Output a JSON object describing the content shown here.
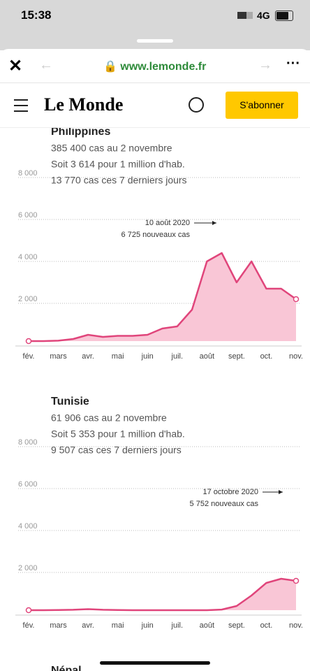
{
  "status": {
    "time": "15:38",
    "network": "4G"
  },
  "browser": {
    "url": "www.lemonde.fr"
  },
  "header": {
    "logo": "Le Monde",
    "subscribe": "S'abonner"
  },
  "chart_data": [
    {
      "type": "line",
      "title": "Philippines",
      "notes": [
        "385 400 cas au 2 novembre",
        "Soit 3 614 pour 1 million d'hab.",
        "13 770 cas ces 7 derniers jours"
      ],
      "annotation": [
        "10 août 2020",
        "6 725 nouveaux cas"
      ],
      "categories": [
        "fév.",
        null,
        "mars",
        null,
        "avr.",
        null,
        "mai",
        null,
        "juin",
        null,
        "juil.",
        null,
        "août",
        null,
        "sept.",
        null,
        "oct.",
        null,
        "nov."
      ],
      "values": [
        0,
        0,
        20,
        100,
        300,
        200,
        250,
        250,
        300,
        600,
        700,
        1500,
        3800,
        4200,
        2800,
        3800,
        2500,
        2500,
        2000
      ],
      "color": "#e0457b",
      "ylim": [
        0,
        8000
      ],
      "yticks": [
        {
          "value": 2000,
          "label": "2 000"
        },
        {
          "value": 4000,
          "label": "4 000"
        },
        {
          "value": 6000,
          "label": "6 000"
        },
        {
          "value": 8000,
          "label": "8 000"
        }
      ],
      "grid": true
    },
    {
      "type": "line",
      "title": "Tunisie",
      "notes": [
        "61 906 cas au 2 novembre",
        "Soit 5 353 pour 1 million d'hab.",
        "9 507 cas ces 7 derniers jours"
      ],
      "annotation": [
        "17 octobre 2020",
        "5 752 nouveaux cas"
      ],
      "categories": [
        "fév.",
        null,
        "mars",
        null,
        "avr.",
        null,
        "mai",
        null,
        "juin",
        null,
        "juil.",
        null,
        "août",
        null,
        "sept.",
        null,
        "oct.",
        null,
        "nov."
      ],
      "values": [
        0,
        0,
        10,
        20,
        50,
        20,
        10,
        0,
        0,
        0,
        0,
        0,
        0,
        30,
        200,
        700,
        1300,
        1500,
        1400
      ],
      "color": "#e0457b",
      "ylim": [
        0,
        8000
      ],
      "yticks": [
        {
          "value": 2000,
          "label": "2 000"
        },
        {
          "value": 4000,
          "label": "4 000"
        },
        {
          "value": 6000,
          "label": "6 000"
        },
        {
          "value": 8000,
          "label": "8 000"
        }
      ],
      "grid": true
    }
  ],
  "next": "Népal"
}
